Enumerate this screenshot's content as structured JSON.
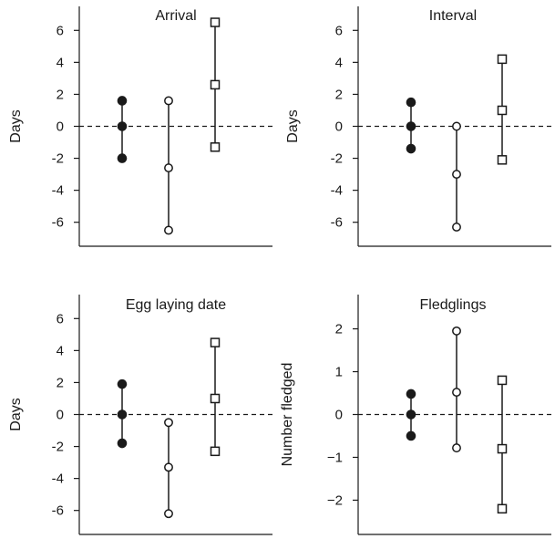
{
  "chart_data": [
    {
      "type": "scatter",
      "title": "Arrival",
      "xlabel": "",
      "ylabel": "Days",
      "ylim": [
        -7.5,
        7.5
      ],
      "yticks": [
        6,
        4,
        2,
        0,
        -2,
        -4,
        -6
      ],
      "reference_line": {
        "y": 0,
        "style": "dashed"
      },
      "series": [
        {
          "marker": "filled-circle",
          "values": [
            1.6,
            0,
            -2.0
          ]
        },
        {
          "marker": "open-circle",
          "values": [
            1.6,
            -2.6,
            -6.5
          ]
        },
        {
          "marker": "open-square",
          "values": [
            6.5,
            2.6,
            -1.3
          ]
        }
      ]
    },
    {
      "type": "scatter",
      "title": "Interval",
      "xlabel": "",
      "ylabel": "Days",
      "ylim": [
        -7.5,
        7.5
      ],
      "yticks": [
        6,
        4,
        2,
        0,
        -2,
        -4,
        -6
      ],
      "reference_line": {
        "y": 0,
        "style": "dashed"
      },
      "series": [
        {
          "marker": "filled-circle",
          "values": [
            1.5,
            0,
            -1.4
          ]
        },
        {
          "marker": "open-circle",
          "values": [
            0,
            -3.0,
            -6.3
          ]
        },
        {
          "marker": "open-square",
          "values": [
            4.2,
            1.0,
            -2.1
          ]
        }
      ]
    },
    {
      "type": "scatter",
      "title": "Egg laying date",
      "xlabel": "",
      "ylabel": "Days",
      "ylim": [
        -7.5,
        7.5
      ],
      "yticks": [
        6,
        4,
        2,
        0,
        -2,
        -4,
        -6
      ],
      "reference_line": {
        "y": 0,
        "style": "dashed"
      },
      "series": [
        {
          "marker": "filled-circle",
          "values": [
            1.9,
            0,
            -1.8
          ]
        },
        {
          "marker": "open-circle",
          "values": [
            -0.5,
            -3.3,
            -6.2
          ]
        },
        {
          "marker": "open-square",
          "values": [
            4.5,
            1.0,
            -2.3
          ]
        }
      ]
    },
    {
      "type": "scatter",
      "title": "Fledglings",
      "xlabel": "",
      "ylabel": "Number fledged",
      "ylim": [
        -2.8,
        2.8
      ],
      "yticks": [
        "2",
        "1",
        "0",
        "−1",
        "−2"
      ],
      "ytick_values": [
        2,
        1,
        0,
        -1,
        -2
      ],
      "reference_line": {
        "y": 0,
        "style": "dashed"
      },
      "series": [
        {
          "marker": "filled-circle",
          "values": [
            0.48,
            0,
            -0.5
          ]
        },
        {
          "marker": "open-circle",
          "values": [
            1.95,
            0.52,
            -0.78
          ]
        },
        {
          "marker": "open-square",
          "values": [
            0.8,
            -0.8,
            -2.2
          ]
        }
      ]
    }
  ]
}
